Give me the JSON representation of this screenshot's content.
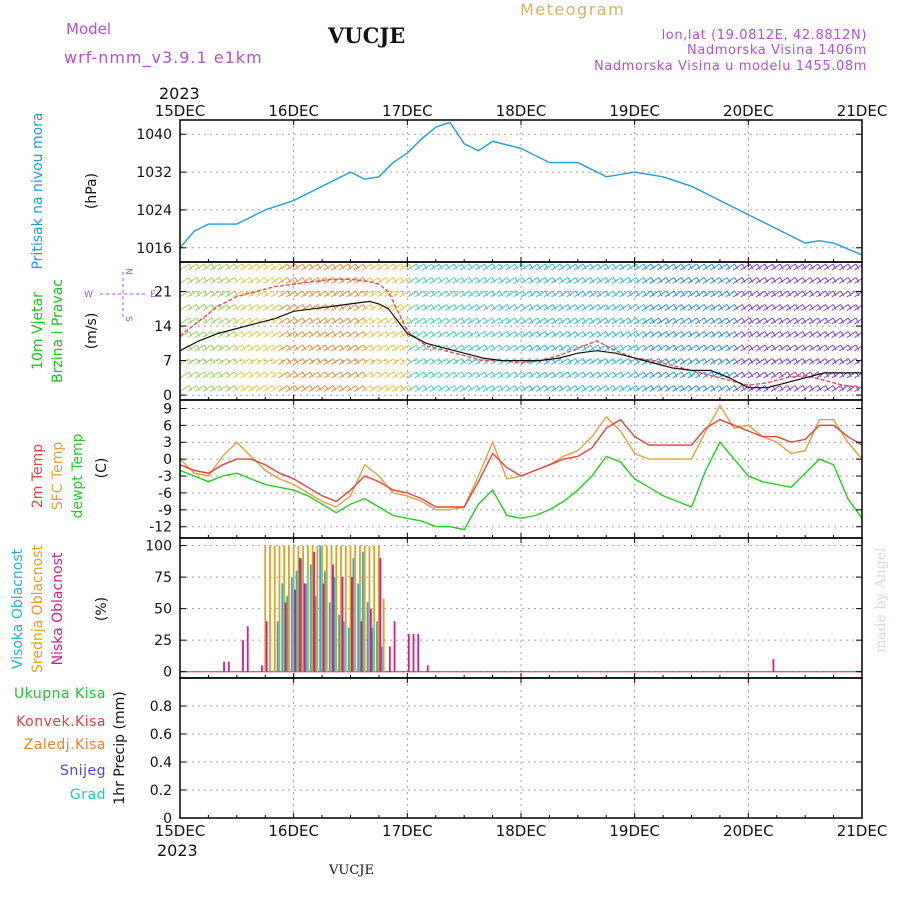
{
  "header": {
    "model_label": "Model",
    "model_name": "wrf-nmm_v3.9.1  e1km",
    "station": "VUCJE",
    "product": "Meteogram",
    "coords": "lon,lat (19.0812E, 42.8812N)",
    "elevation": "Nadmorska Visina 1406m",
    "model_elevation": "Nadmorska Visina u modelu 1455.08m",
    "year_top": "2023",
    "year_bottom": "2023",
    "footer_station": "VUCJE",
    "credit": "made by Angel"
  },
  "colors": {
    "pressure": "#1e9be0",
    "wind_label": "#19c419",
    "temp2m": "#e8413c",
    "sfc": "#e0a040",
    "dewpt": "#22cc22",
    "high_cloud": "#23b0d8",
    "mid_cloud": "#e0a020",
    "low_cloud": "#d21e8c",
    "model_purple": "#b050d8",
    "meteogram_gold": "#d8b060",
    "ukupna": "#22c03a",
    "konvek": "#e83c3c",
    "zaledj": "#f08030",
    "snijeg": "#4848e0",
    "grad": "#22c8c0"
  },
  "panels": {
    "pressure": {
      "lines": [
        "Pritisak na nivou mora"
      ],
      "unit": "(hPa)"
    },
    "wind": {
      "lines": [
        "10m Vjetar",
        "Brzina i Pravac"
      ],
      "unit": "(m/s)",
      "compass": {
        "n": "N",
        "s": "S",
        "w": "W",
        "e": "E"
      }
    },
    "temp": {
      "lines": [
        "2m Temp",
        "SFC Temp",
        "dewpt Temp"
      ],
      "unit": "(C)"
    },
    "cloud": {
      "lines": [
        "Visoka Oblacnost",
        "Srednja Oblacnost",
        "Niska Oblacnost"
      ],
      "unit": "(%)"
    },
    "precip": {
      "legend": [
        "Ukupna Kisa",
        "Konvek.Kisa",
        "Zaledj.Kisa",
        "Snijeg",
        "Grad"
      ],
      "unit": "1hr Precip (mm)"
    }
  },
  "chart_data": [
    {
      "type": "line",
      "title": "Pritisak na nivou mora",
      "ylabel": "(hPa)",
      "x_unit": "hours from 15DEC 00Z",
      "x_ticks": [
        "15DEC",
        "16DEC",
        "17DEC",
        "18DEC",
        "19DEC",
        "20DEC",
        "21DEC"
      ],
      "xlim": [
        0,
        144
      ],
      "ylim": [
        1013,
        1043
      ],
      "y_ticks": [
        1016,
        1024,
        1032,
        1040
      ],
      "grid": true,
      "series": [
        {
          "name": "Pritisak na nivou mora",
          "x": [
            0,
            3,
            6,
            9,
            12,
            18,
            24,
            30,
            36,
            39,
            42,
            45,
            48,
            51,
            54,
            57,
            60,
            63,
            66,
            72,
            78,
            84,
            90,
            93,
            96,
            102,
            108,
            114,
            120,
            126,
            132,
            135,
            138,
            144
          ],
          "y": [
            1016,
            1019.5,
            1021,
            1021,
            1021,
            1024,
            1026,
            1029,
            1032,
            1030.5,
            1031,
            1034,
            1036,
            1039,
            1041.5,
            1042.5,
            1038,
            1036.5,
            1038.5,
            1037,
            1034,
            1034,
            1031,
            1031.5,
            1032,
            1031,
            1029,
            1026,
            1023,
            1020,
            1017,
            1017.5,
            1017,
            1014.5
          ]
        }
      ]
    },
    {
      "type": "line",
      "title": "10m Vjetar Brzina i Pravac",
      "ylabel": "(m/s)",
      "xlim": [
        0,
        144
      ],
      "ylim": [
        -1,
        27
      ],
      "y_ticks": [
        0,
        7,
        14,
        21
      ],
      "grid": true,
      "series": [
        {
          "name": "wind speed",
          "x": [
            0,
            4,
            8,
            12,
            16,
            20,
            24,
            28,
            32,
            36,
            40,
            42,
            44,
            46,
            48,
            52,
            56,
            60,
            64,
            68,
            72,
            76,
            80,
            84,
            88,
            92,
            96,
            100,
            104,
            108,
            112,
            116,
            120,
            124,
            128,
            132,
            136,
            140,
            144
          ],
          "y": [
            9,
            11,
            12.5,
            13.5,
            14.5,
            15.5,
            17,
            17.5,
            18,
            18.5,
            19,
            18.5,
            17.5,
            15,
            12.5,
            10.5,
            9.5,
            8.5,
            7.5,
            7,
            7,
            7,
            7.5,
            8.5,
            9,
            8.5,
            7.5,
            6.5,
            5.5,
            5,
            5,
            3.5,
            1.5,
            1.5,
            2.5,
            3.5,
            4.5,
            4.5,
            4.5
          ]
        },
        {
          "name": "wind gust",
          "x": [
            0,
            4,
            8,
            12,
            16,
            20,
            24,
            28,
            32,
            36,
            40,
            42,
            44,
            46,
            48,
            52,
            56,
            60,
            64,
            68,
            72,
            76,
            80,
            84,
            88,
            92,
            96,
            100,
            104,
            108,
            112,
            116,
            120,
            124,
            128,
            132,
            136,
            140,
            144
          ],
          "y": [
            12,
            15,
            18,
            20,
            21,
            22,
            22.5,
            23,
            23.5,
            23.5,
            23,
            22.5,
            21,
            17,
            13,
            10,
            9,
            8,
            7,
            7,
            6.5,
            7,
            8,
            9.5,
            11,
            9,
            7.5,
            7,
            6,
            5,
            4,
            3,
            2,
            2.5,
            3.5,
            4,
            3,
            2,
            1.5
          ]
        }
      ]
    },
    {
      "type": "line",
      "title": "Temperatura",
      "ylabel": "(C)",
      "xlim": [
        0,
        144
      ],
      "ylim": [
        -14,
        10.5
      ],
      "y_ticks": [
        -12,
        -9,
        -6,
        -3,
        0,
        3,
        6,
        9
      ],
      "grid": true,
      "series": [
        {
          "name": "2m Temp",
          "x": [
            0,
            3,
            6,
            9,
            12,
            15,
            18,
            21,
            24,
            27,
            30,
            33,
            36,
            39,
            42,
            45,
            48,
            51,
            54,
            57,
            60,
            63,
            66,
            69,
            72,
            75,
            78,
            81,
            84,
            87,
            90,
            93,
            96,
            99,
            102,
            105,
            108,
            111,
            114,
            117,
            120,
            123,
            126,
            129,
            132,
            135,
            138,
            141,
            144
          ],
          "y": [
            -1,
            -2,
            -2.5,
            -1,
            0,
            0,
            -1,
            -2.5,
            -3.5,
            -5,
            -6.5,
            -7.5,
            -5.5,
            -3,
            -4,
            -5.5,
            -6,
            -7,
            -8.5,
            -8.5,
            -8.5,
            -4,
            1,
            -1.5,
            -3,
            -2,
            -1,
            0,
            0.5,
            2,
            5.5,
            7,
            4,
            2.5,
            2.5,
            2.5,
            2.5,
            5.5,
            7,
            6,
            5,
            4,
            4,
            3,
            3.5,
            6,
            6,
            4,
            2.5
          ]
        },
        {
          "name": "SFC Temp",
          "x": [
            0,
            3,
            6,
            9,
            12,
            15,
            18,
            21,
            24,
            27,
            30,
            33,
            36,
            39,
            42,
            45,
            48,
            51,
            54,
            57,
            60,
            63,
            66,
            69,
            72,
            75,
            78,
            81,
            84,
            87,
            90,
            93,
            96,
            99,
            102,
            105,
            108,
            111,
            114,
            117,
            120,
            123,
            126,
            129,
            132,
            135,
            138,
            141,
            144
          ],
          "y": [
            0,
            -2.5,
            -3,
            0.5,
            3,
            0.5,
            -2,
            -3.5,
            -4.5,
            -6,
            -7.5,
            -8.5,
            -6.5,
            -1,
            -3,
            -6,
            -6.5,
            -7.5,
            -9,
            -9,
            -8.5,
            -3,
            3,
            -3.5,
            -3,
            -2,
            -1,
            0.5,
            1.5,
            4,
            7.5,
            5,
            1,
            0,
            0,
            0,
            0,
            5,
            9.5,
            5.5,
            6,
            4,
            3,
            1,
            1.5,
            7,
            7,
            3,
            0
          ]
        },
        {
          "name": "dewpt Temp",
          "x": [
            0,
            3,
            6,
            9,
            12,
            15,
            18,
            21,
            24,
            27,
            30,
            33,
            36,
            39,
            42,
            45,
            48,
            51,
            54,
            57,
            60,
            63,
            66,
            69,
            72,
            75,
            78,
            81,
            84,
            87,
            90,
            93,
            96,
            99,
            102,
            105,
            108,
            111,
            114,
            117,
            120,
            123,
            126,
            129,
            132,
            135,
            138,
            141,
            144
          ],
          "y": [
            -2,
            -3,
            -4,
            -3,
            -2.5,
            -3.5,
            -4.5,
            -5,
            -5.5,
            -6.5,
            -8,
            -9.5,
            -8,
            -7,
            -8.5,
            -10,
            -10.5,
            -11,
            -12,
            -12,
            -12.5,
            -8,
            -5.5,
            -10,
            -10.5,
            -10,
            -9,
            -7.5,
            -5.5,
            -3,
            0.5,
            -0.5,
            -3.5,
            -5,
            -6.5,
            -7.5,
            -8.5,
            -2,
            3,
            0,
            -3,
            -4,
            -4.5,
            -5,
            -2.5,
            0,
            -1,
            -7,
            -10.5
          ]
        }
      ]
    },
    {
      "type": "bar",
      "title": "Oblacnost",
      "ylabel": "(%)",
      "xlim": [
        0,
        144
      ],
      "ylim": [
        -5,
        106
      ],
      "y_ticks": [
        0,
        25,
        50,
        75,
        100
      ],
      "grid": true,
      "series": [
        {
          "name": "Visoka Oblacnost",
          "x": [
            20,
            21,
            22,
            23,
            24,
            25,
            26,
            27,
            28,
            29,
            30,
            31,
            32,
            33,
            34,
            35,
            36,
            37,
            38,
            39,
            40,
            41,
            42
          ],
          "y": [
            40,
            70,
            60,
            75,
            80,
            90,
            70,
            85,
            60,
            100,
            80,
            55,
            75,
            45,
            40,
            35,
            90,
            70,
            95,
            55,
            35,
            40,
            20
          ]
        },
        {
          "name": "Srednja Oblacnost",
          "x": [
            18,
            19,
            20,
            21,
            22,
            23,
            24,
            25,
            26,
            27,
            28,
            29,
            30,
            31,
            32,
            33,
            34,
            35,
            36,
            37,
            38,
            39,
            40,
            41,
            42,
            43
          ],
          "y": [
            100,
            100,
            100,
            100,
            100,
            100,
            100,
            100,
            100,
            100,
            100,
            100,
            100,
            100,
            100,
            100,
            100,
            100,
            100,
            100,
            100,
            100,
            100,
            100,
            100,
            58
          ]
        },
        {
          "name": "Niska Oblacnost",
          "x": [
            9,
            10,
            13,
            14,
            17,
            18,
            22,
            24,
            25,
            26,
            28,
            30,
            32,
            34,
            36,
            38,
            40,
            42,
            44,
            45,
            48,
            49,
            50,
            52,
            125
          ],
          "y": [
            8,
            8,
            25,
            36,
            5,
            40,
            55,
            65,
            90,
            70,
            95,
            70,
            85,
            75,
            75,
            40,
            50,
            90,
            20,
            40,
            30,
            30,
            30,
            5,
            10
          ]
        }
      ]
    },
    {
      "type": "bar",
      "title": "1hr Precip",
      "ylabel": "1hr Precip (mm)",
      "xlim": [
        0,
        144
      ],
      "ylim": [
        0,
        1.0
      ],
      "y_ticks": [
        0,
        0.2,
        0.4,
        0.6,
        0.8
      ],
      "grid": true,
      "series": [
        {
          "name": "Ukupna Kisa",
          "values": []
        },
        {
          "name": "Konvek.Kisa",
          "values": []
        },
        {
          "name": "Zaledj.Kisa",
          "values": []
        },
        {
          "name": "Snijeg",
          "values": []
        },
        {
          "name": "Grad",
          "values": []
        }
      ]
    }
  ]
}
